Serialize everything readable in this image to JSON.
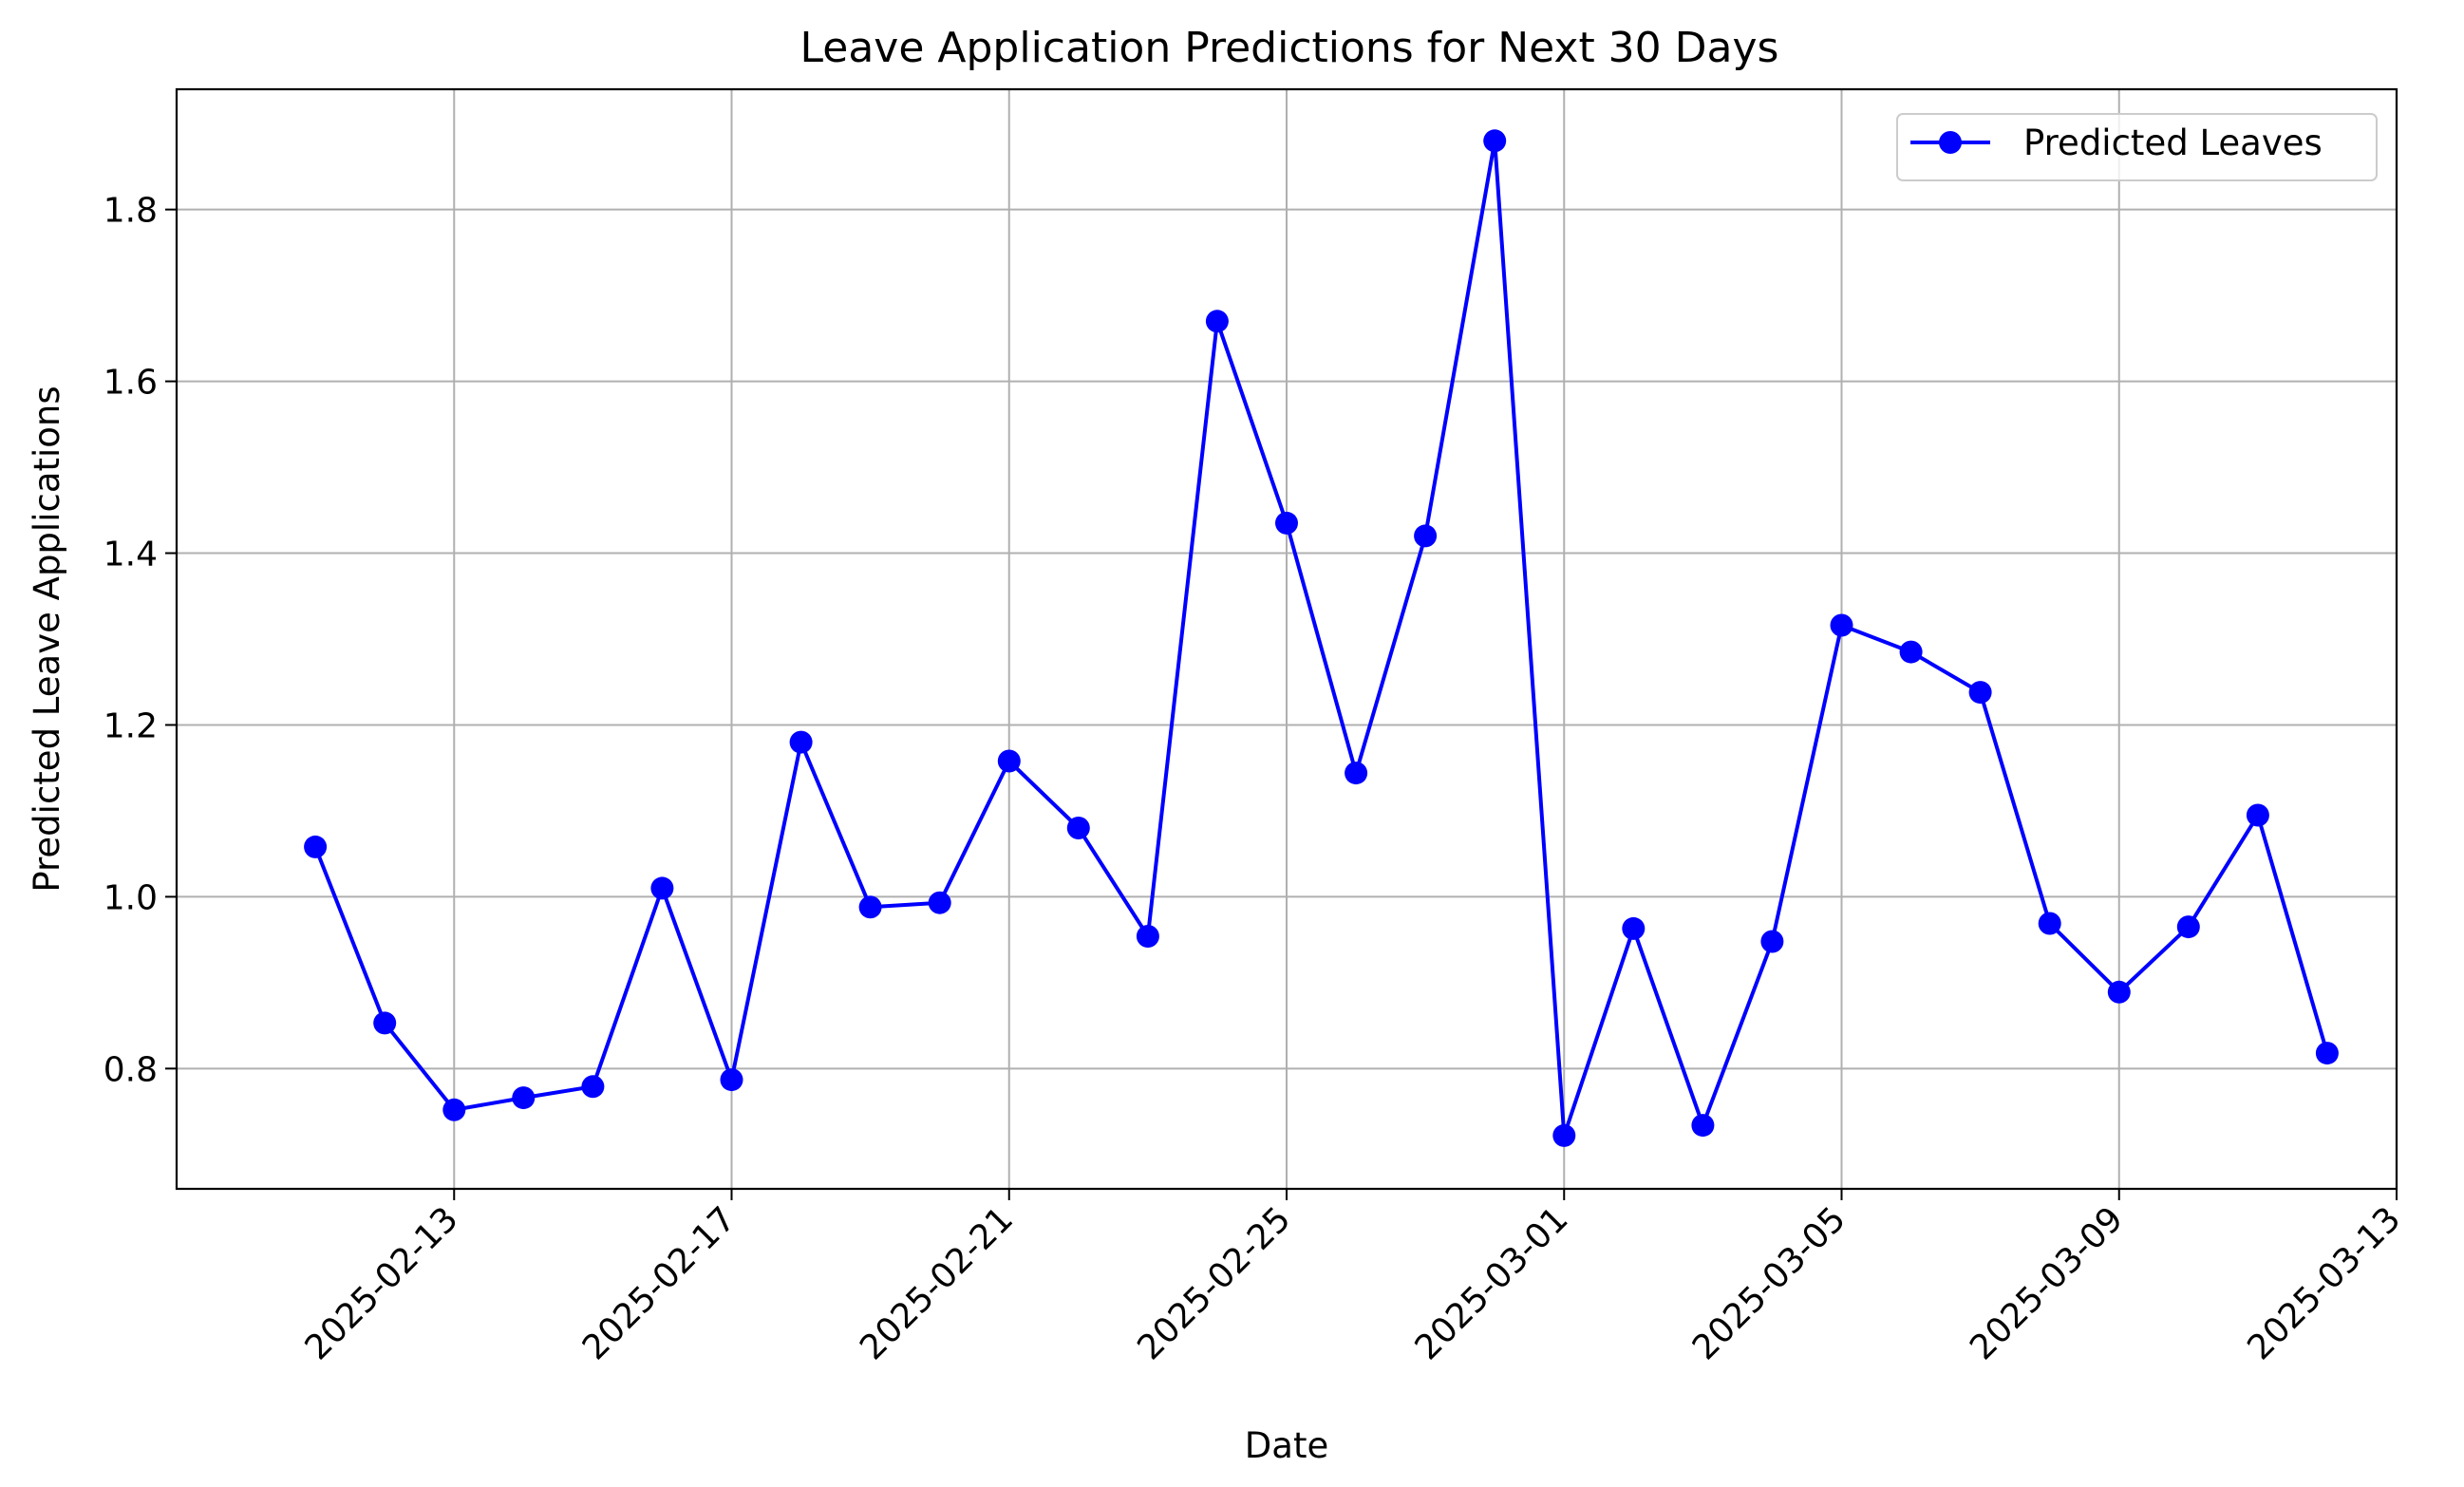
{
  "chart_data": {
    "type": "line",
    "title": "Leave Application Predictions for Next 30 Days",
    "xlabel": "Date",
    "ylabel": "Predicted Leave Applications",
    "x_ticks": [
      "2025-02-13",
      "2025-02-17",
      "2025-02-21",
      "2025-02-25",
      "2025-03-01",
      "2025-03-05",
      "2025-03-09",
      "2025-03-13"
    ],
    "y_ticks": [
      "0.8",
      "1.0",
      "1.2",
      "1.4",
      "1.6",
      "1.8"
    ],
    "xlim": [
      "2025-02-09",
      "2025-03-13"
    ],
    "ylim": [
      0.66,
      1.94
    ],
    "grid": true,
    "legend_position": "top-right",
    "series": [
      {
        "name": "Predicted Leaves",
        "color": "#0000ff",
        "marker": "circle",
        "x": [
          "2025-02-11",
          "2025-02-12",
          "2025-02-13",
          "2025-02-14",
          "2025-02-15",
          "2025-02-16",
          "2025-02-17",
          "2025-02-18",
          "2025-02-19",
          "2025-02-20",
          "2025-02-21",
          "2025-02-22",
          "2025-02-23",
          "2025-02-24",
          "2025-02-25",
          "2025-02-26",
          "2025-02-27",
          "2025-02-28",
          "2025-03-01",
          "2025-03-02",
          "2025-03-03",
          "2025-03-04",
          "2025-03-05",
          "2025-03-06",
          "2025-03-07",
          "2025-03-08",
          "2025-03-09",
          "2025-03-10",
          "2025-03-11",
          "2025-03-12"
        ],
        "values": [
          1.058,
          0.853,
          0.752,
          0.766,
          0.779,
          1.01,
          0.787,
          1.18,
          0.988,
          0.993,
          1.158,
          1.08,
          0.954,
          1.67,
          1.435,
          1.144,
          1.42,
          1.88,
          0.722,
          0.963,
          0.734,
          0.948,
          1.316,
          1.285,
          1.238,
          0.969,
          0.889,
          0.965,
          1.095,
          0.818
        ]
      }
    ]
  }
}
